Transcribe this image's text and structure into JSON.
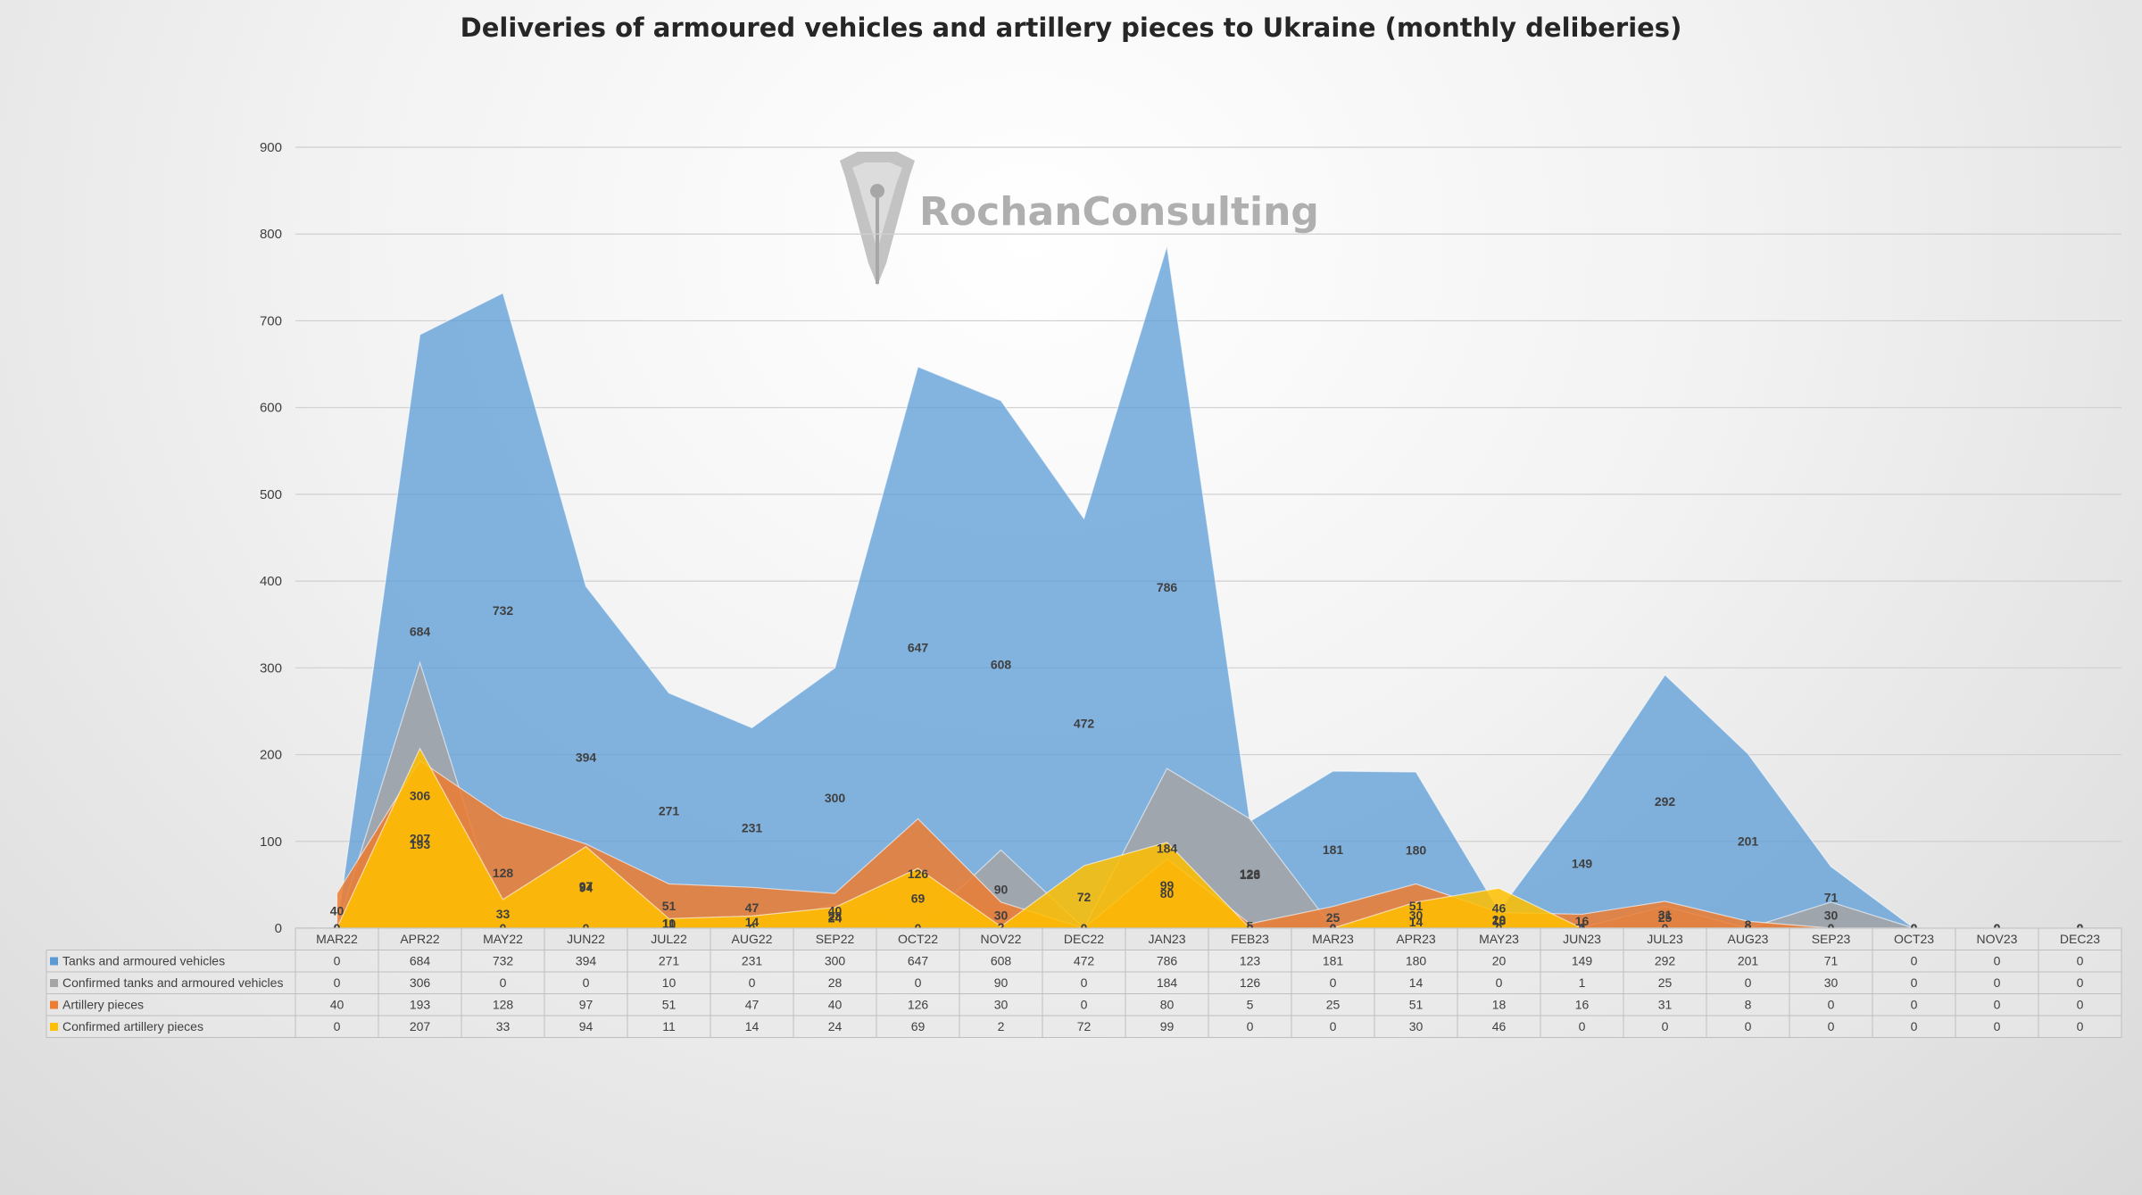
{
  "chart_data": {
    "type": "area",
    "title": "Deliveries of armoured vehicles and artillery pieces to Ukraine (monthly deliberies)",
    "xlabel": "",
    "ylabel": "",
    "ylim": [
      0,
      900
    ],
    "yticks": [
      0,
      100,
      200,
      300,
      400,
      500,
      600,
      700,
      800,
      900
    ],
    "grid": true,
    "legend": "data-table-below",
    "categories": [
      "MAR22",
      "APR22",
      "MAY22",
      "JUN22",
      "JUL22",
      "AUG22",
      "SEP22",
      "OCT22",
      "NOV22",
      "DEC22",
      "JAN23",
      "FEB23",
      "MAR23",
      "APR23",
      "MAY23",
      "JUN23",
      "JUL23",
      "AUG23",
      "SEP23",
      "OCT23",
      "NOV23",
      "DEC23"
    ],
    "series": [
      {
        "name": "Tanks and armoured vehicles",
        "color": "#5b9bd5",
        "values": [
          0,
          684,
          732,
          394,
          271,
          231,
          300,
          647,
          608,
          472,
          786,
          123,
          181,
          180,
          20,
          149,
          292,
          201,
          71,
          0,
          0,
          0
        ]
      },
      {
        "name": "Confirmed  tanks and armoured vehicles",
        "color": "#a5a5a5",
        "values": [
          0,
          306,
          0,
          0,
          10,
          0,
          28,
          0,
          90,
          0,
          184,
          126,
          0,
          14,
          0,
          1,
          25,
          0,
          30,
          0,
          0,
          0
        ]
      },
      {
        "name": "Artillery pieces",
        "color": "#ed7d31",
        "values": [
          40,
          193,
          128,
          97,
          51,
          47,
          40,
          126,
          30,
          0,
          80,
          5,
          25,
          51,
          18,
          16,
          31,
          8,
          0,
          0,
          0,
          0
        ]
      },
      {
        "name": "Confirmed artillery pieces",
        "color": "#ffc000",
        "values": [
          0,
          207,
          33,
          94,
          11,
          14,
          24,
          69,
          2,
          72,
          99,
          0,
          0,
          30,
          46,
          0,
          0,
          0,
          0,
          0,
          0,
          0
        ]
      }
    ]
  },
  "watermark": {
    "text": "RochanConsulting",
    "icon": "rochan-crest-icon"
  }
}
